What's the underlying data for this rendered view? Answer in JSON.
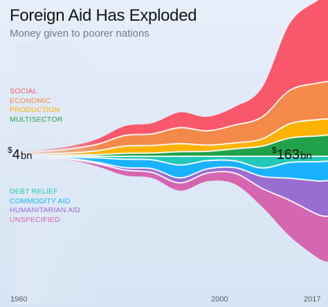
{
  "title": "Foreign Aid Has Exploded",
  "subtitle": "Money given to poorer nations",
  "chart_data": {
    "type": "area",
    "title": "Foreign Aid Has Exploded",
    "subtitle": "Money given to poorer nations",
    "x_ticks": [
      "1960",
      "2000",
      "2017"
    ],
    "x": [
      1960,
      1965,
      1970,
      1975,
      1980,
      1985,
      1990,
      1995,
      2000,
      2005,
      2010,
      2015,
      2017
    ],
    "start_label": {
      "currency": "$",
      "value": "4",
      "unit": "bn",
      "year": 1960
    },
    "end_label": {
      "currency": "$",
      "value": "163",
      "unit": "bn",
      "year": 2017
    },
    "series": [
      {
        "name": "SOCIAL",
        "color": "#f9586a",
        "values": [
          0.4,
          0.9,
          1.6,
          3.2,
          5.8,
          6.6,
          9.4,
          8.6,
          11.2,
          18.0,
          41.0,
          50.5,
          52.0
        ]
      },
      {
        "name": "ECONOMIC",
        "color": "#f38a4a",
        "values": [
          1.1,
          1.7,
          2.5,
          4.0,
          6.5,
          7.2,
          9.8,
          8.8,
          11.0,
          13.5,
          20.5,
          22.5,
          23.0
        ]
      },
      {
        "name": "PRODUCTION",
        "color": "#ffb300",
        "values": [
          0.5,
          0.9,
          1.4,
          2.4,
          4.5,
          4.6,
          5.0,
          3.9,
          3.6,
          4.5,
          8.8,
          10.0,
          10.0
        ]
      },
      {
        "name": "MULTISECTOR",
        "color": "#21a24a",
        "values": [
          0.3,
          0.5,
          0.7,
          1.0,
          1.8,
          2.0,
          2.8,
          3.0,
          4.6,
          6.2,
          11.2,
          12.5,
          13.0
        ]
      },
      {
        "name": "DEBT RELIEF",
        "color": "#22c9b8",
        "values": [
          0.15,
          0.3,
          0.5,
          1.0,
          1.8,
          2.2,
          5.4,
          2.7,
          2.8,
          7.2,
          3.8,
          3.4,
          3.0
        ]
      },
      {
        "name": "COMMODITY AID",
        "color": "#1ab2ff",
        "values": [
          0.6,
          0.9,
          1.0,
          2.8,
          5.2,
          5.5,
          7.9,
          5.1,
          4.2,
          5.2,
          9.7,
          11.8,
          12.0
        ]
      },
      {
        "name": "HUMANITARIAN AID",
        "color": "#9a6dd0",
        "values": [
          0.15,
          0.2,
          0.3,
          0.7,
          1.5,
          2.3,
          3.1,
          2.6,
          3.4,
          7.4,
          13.6,
          20.5,
          22.0
        ]
      },
      {
        "name": "UNSPECIFIED",
        "color": "#d566b0",
        "values": [
          0.25,
          0.4,
          0.6,
          1.8,
          3.3,
          3.4,
          4.8,
          5.0,
          6.7,
          11.3,
          22.0,
          26.5,
          28.0
        ]
      }
    ]
  }
}
